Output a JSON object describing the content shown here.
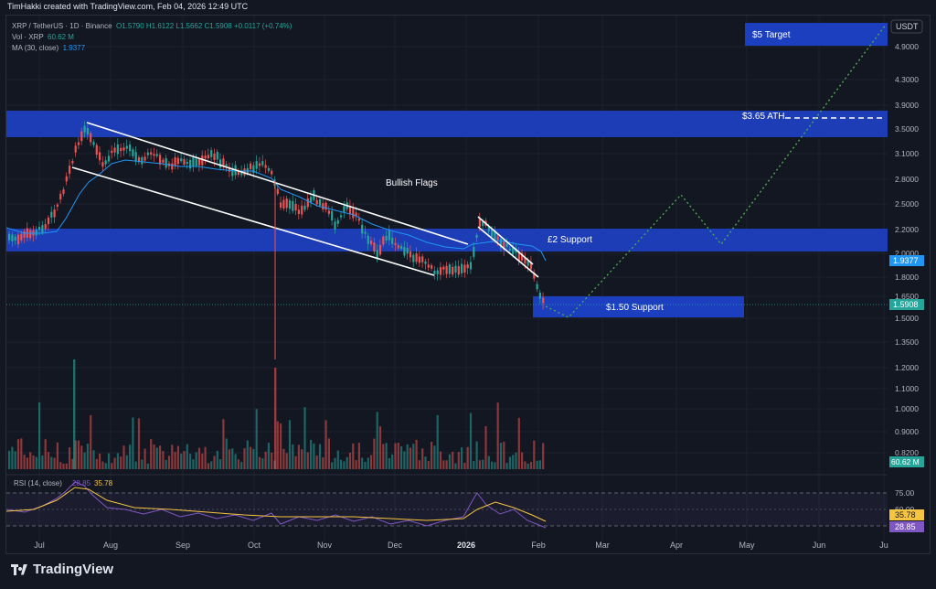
{
  "header": {
    "caption": "TimHakki created with TradingView.com, Feb 04, 2026 12:49 UTC"
  },
  "legend": {
    "symbol": "XRP / TetherUS · 1D · Binance",
    "ohlc": "O1.5790 H1.6122 L1.5662 C1.5908 +0.0117 (+0.74%)",
    "vol_label": "Vol · XRP",
    "vol_value": "60.62 M",
    "ma_label": "MA (30, close)",
    "ma_value": "1.9377",
    "rsi_label": "RSI (14, close)",
    "rsi_value_1": "28.85",
    "rsi_value_2": "35.78"
  },
  "price_axis": {
    "currency": "USDT",
    "ticks": [
      "4.9000",
      "4.3000",
      "3.9000",
      "3.5000",
      "3.1000",
      "2.8000",
      "2.5000",
      "2.2000",
      "2.0000",
      "1.8000",
      "1.6500",
      "1.5000",
      "1.3500",
      "1.2000",
      "1.1000",
      "1.0000",
      "0.9000",
      "0.8200"
    ],
    "badge_ma": "1.9377",
    "badge_price": "1.5908",
    "badge_vol": "60.62 M"
  },
  "rsi_axis": {
    "ticks": [
      "75.00",
      "60.00"
    ],
    "badge_1": "35.78",
    "badge_2": "28.85"
  },
  "time_axis": {
    "labels": [
      "Jul",
      "Aug",
      "Sep",
      "Oct",
      "Nov",
      "Dec",
      "2026",
      "Feb",
      "Mar",
      "Apr",
      "May",
      "Jun",
      "Ju"
    ]
  },
  "annotations": {
    "target": "$5 Target",
    "ath": "$3.65 ATH",
    "bullish_flags": "Bullish Flags",
    "support_2": "£2 Support",
    "support_150": "$1.50 Support"
  },
  "colors": {
    "up": "#26a69a",
    "down": "#ef5350",
    "zone": "#1c3fbf",
    "ma": "#2196f3",
    "rsi": "#7e57c2",
    "rsi_ma": "#f5c542",
    "projection": "#4caf50"
  },
  "footer": {
    "brand": "TradingView"
  }
}
